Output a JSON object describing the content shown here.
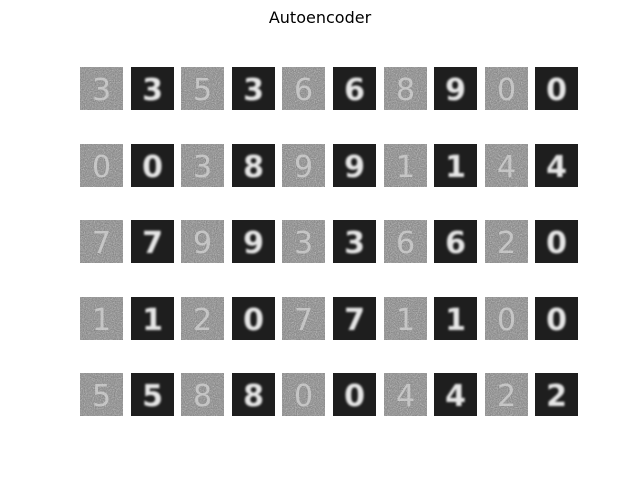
{
  "figure": {
    "title": "Autoencoder"
  },
  "grid": {
    "rows": [
      {
        "pairs": [
          {
            "input": "3",
            "output": "3"
          },
          {
            "input": "5",
            "output": "3"
          },
          {
            "input": "6",
            "output": "6"
          },
          {
            "input": "8",
            "output": "9"
          },
          {
            "input": "0",
            "output": "0"
          }
        ]
      },
      {
        "pairs": [
          {
            "input": "0",
            "output": "0"
          },
          {
            "input": "3",
            "output": "8"
          },
          {
            "input": "9",
            "output": "9"
          },
          {
            "input": "1",
            "output": "1"
          },
          {
            "input": "4",
            "output": "4"
          }
        ]
      },
      {
        "pairs": [
          {
            "input": "7",
            "output": "7"
          },
          {
            "input": "9",
            "output": "9"
          },
          {
            "input": "3",
            "output": "3"
          },
          {
            "input": "6",
            "output": "6"
          },
          {
            "input": "2",
            "output": "0"
          }
        ]
      },
      {
        "pairs": [
          {
            "input": "1",
            "output": "1"
          },
          {
            "input": "2",
            "output": "0"
          },
          {
            "input": "7",
            "output": "7"
          },
          {
            "input": "1",
            "output": "1"
          },
          {
            "input": "0",
            "output": "0"
          }
        ]
      },
      {
        "pairs": [
          {
            "input": "5",
            "output": "5"
          },
          {
            "input": "8",
            "output": "8"
          },
          {
            "input": "0",
            "output": "0"
          },
          {
            "input": "4",
            "output": "4"
          },
          {
            "input": "2",
            "output": "2"
          }
        ]
      }
    ]
  }
}
